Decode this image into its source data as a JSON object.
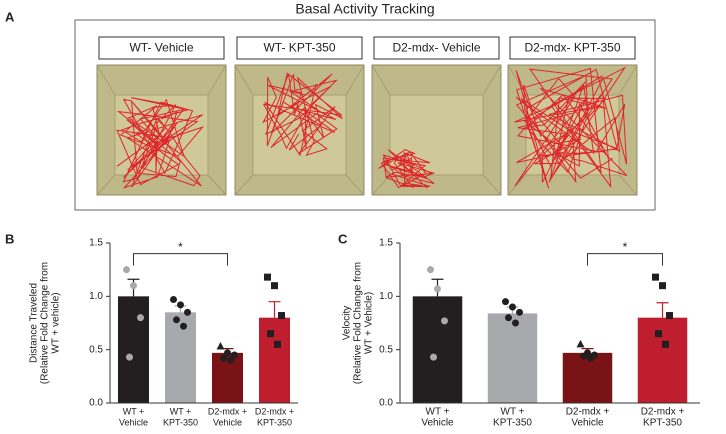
{
  "panel_a": {
    "panel_label": "A",
    "title": "Basal Activity Tracking",
    "conditions": [
      "WT- Vehicle",
      "WT- KPT-350",
      "D2-mdx- Vehicle",
      "D2-mdx- KPT-350"
    ]
  },
  "chart_data": [
    {
      "type": "bar",
      "panel_label": "B",
      "ylabel": [
        "Distance Traveled",
        "(Relative Fold Change from",
        "WT + vehicle)"
      ],
      "categories": [
        [
          "WT +",
          "Vehicle"
        ],
        [
          "WT +",
          "KPT-350"
        ],
        [
          "D2-mdx +",
          "Vehicle"
        ],
        [
          "D2-mdx +",
          "KPT-350"
        ]
      ],
      "values": [
        1.0,
        0.85,
        0.47,
        0.8
      ],
      "errors": [
        0.16,
        0.06,
        0.04,
        0.15
      ],
      "colors": [
        "#231f20",
        "#a7a9ac",
        "#7a1315",
        "#be1e2d"
      ],
      "points": [
        [
          1.25,
          1.1,
          0.8,
          0.43
        ],
        [
          0.97,
          0.92,
          0.85,
          0.78,
          0.72
        ],
        [
          0.53,
          0.47,
          0.45,
          0.42,
          0.4
        ],
        [
          1.18,
          1.1,
          0.82,
          0.65,
          0.55
        ]
      ],
      "point_colors": [
        "#a7a9ac",
        "#231f20",
        "#231f20",
        "#231f20"
      ],
      "markers": [
        "circle",
        "circle",
        "triangle",
        "square"
      ],
      "ylim": [
        0,
        1.5
      ],
      "yticks": [
        {
          "value": 0,
          "label": "0.0"
        },
        {
          "value": 0.5,
          "label": "0.5"
        },
        {
          "value": 1,
          "label": "1.0"
        },
        {
          "value": 1.5,
          "label": "1.5"
        }
      ],
      "annotations": [
        {
          "label": "*",
          "x": [
            0,
            2
          ],
          "y": 1.4
        }
      ]
    },
    {
      "type": "bar",
      "panel_label": "C",
      "ylabel": [
        "Velocity",
        "(Relative Fold Change from",
        "WT + Vehicle)"
      ],
      "categories": [
        [
          "WT +",
          "Vehicle"
        ],
        [
          "WT +",
          "KPT-350"
        ],
        [
          "D2-mdx +",
          "Vehicle"
        ],
        [
          "D2-mdx +",
          "KPT-350"
        ]
      ],
      "values": [
        1.0,
        0.84,
        0.47,
        0.8
      ],
      "errors": [
        0.16,
        0.06,
        0.04,
        0.14
      ],
      "colors": [
        "#231f20",
        "#a7a9ac",
        "#7a1315",
        "#be1e2d"
      ],
      "points": [
        [
          1.25,
          1.07,
          0.77,
          0.43
        ],
        [
          0.95,
          0.9,
          0.85,
          0.8,
          0.75
        ],
        [
          0.55,
          0.47,
          0.45,
          0.44,
          0.42
        ],
        [
          1.18,
          1.1,
          0.82,
          0.65,
          0.55
        ]
      ],
      "point_colors": [
        "#a7a9ac",
        "#231f20",
        "#231f20",
        "#231f20"
      ],
      "markers": [
        "circle",
        "circle",
        "triangle",
        "square"
      ],
      "ylim": [
        0,
        1.5
      ],
      "yticks": [
        {
          "value": 0,
          "label": "0.0"
        },
        {
          "value": 0.5,
          "label": "0.5"
        },
        {
          "value": 1,
          "label": "1.0"
        },
        {
          "value": 1.5,
          "label": "1.5"
        }
      ],
      "annotations": [
        {
          "label": "*",
          "x": [
            2,
            3
          ],
          "y": 1.4
        }
      ]
    }
  ]
}
